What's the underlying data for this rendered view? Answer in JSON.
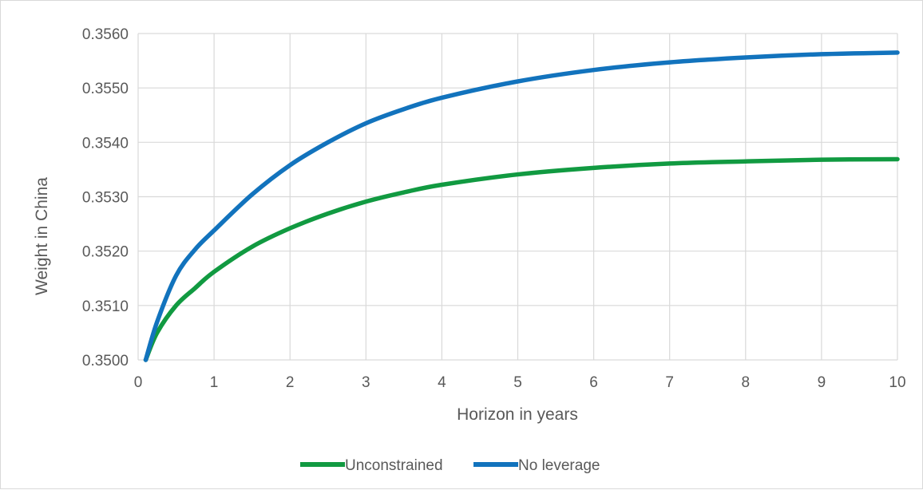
{
  "chart_data": {
    "type": "line",
    "title": "",
    "xlabel": "Horizon in years",
    "ylabel": "Weight in China",
    "xlim": [
      0,
      10
    ],
    "ylim": [
      0.35,
      0.356
    ],
    "x_ticks": [
      "0",
      "1",
      "2",
      "3",
      "4",
      "5",
      "6",
      "7",
      "8",
      "9",
      "10"
    ],
    "y_ticks": [
      "0.3500",
      "0.3510",
      "0.3520",
      "0.3530",
      "0.3540",
      "0.3550",
      "0.3560"
    ],
    "grid": true,
    "legend_position": "bottom",
    "x": [
      0.1,
      0.25,
      0.5,
      0.75,
      1,
      1.5,
      2,
      2.5,
      3,
      3.5,
      4,
      5,
      6,
      7,
      8,
      9,
      10
    ],
    "series": [
      {
        "name": "Unconstrained",
        "color": "#119a41",
        "values": [
          0.35,
          0.3505,
          0.351,
          0.35132,
          0.35162,
          0.35208,
          0.35242,
          0.35269,
          0.35291,
          0.35308,
          0.35322,
          0.35341,
          0.35353,
          0.35361,
          0.35365,
          0.35368,
          0.35369
        ]
      },
      {
        "name": "No leverage",
        "color": "#1273bd",
        "values": [
          0.35,
          0.3507,
          0.35155,
          0.35203,
          0.35238,
          0.35304,
          0.35358,
          0.354,
          0.35435,
          0.35461,
          0.35482,
          0.35512,
          0.35533,
          0.35547,
          0.35556,
          0.35562,
          0.35565
        ]
      }
    ]
  }
}
